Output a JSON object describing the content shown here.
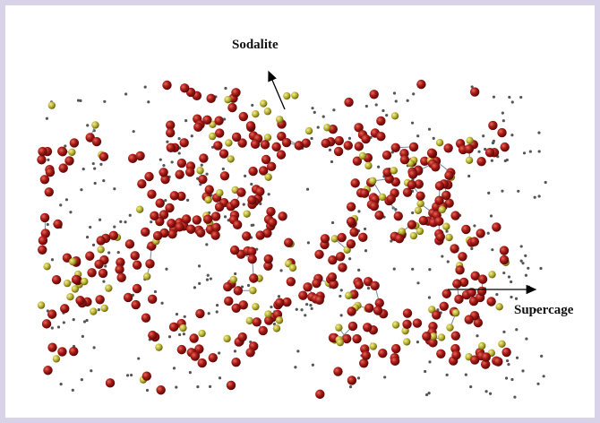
{
  "annotations": {
    "sodalite": "Sodalite",
    "supercage": "Supercage"
  }
}
